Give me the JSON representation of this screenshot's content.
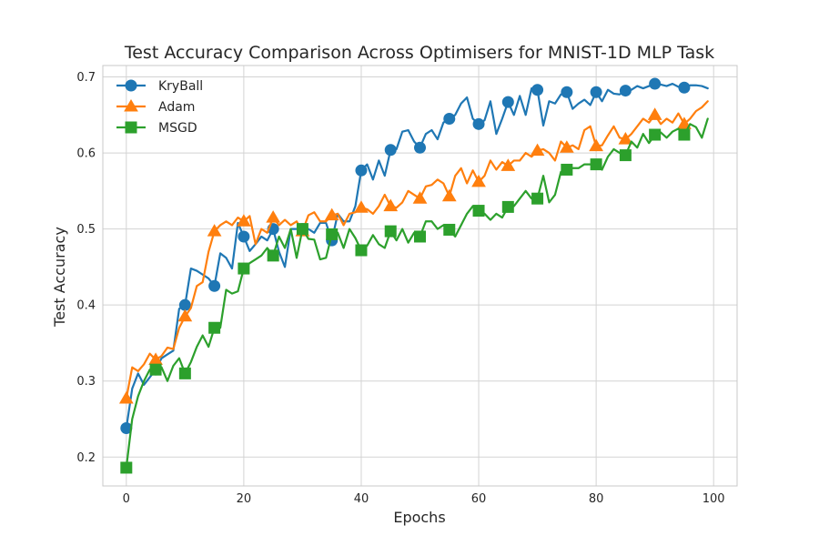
{
  "chart_data": {
    "type": "line",
    "title": "Test Accuracy Comparison Across Optimisers for MNIST-1D MLP Task",
    "xlabel": "Epochs",
    "ylabel": "Test Accuracy",
    "xlim": [
      -4,
      104
    ],
    "ylim": [
      0.162,
      0.715
    ],
    "xticks": [
      0,
      20,
      40,
      60,
      80,
      100
    ],
    "yticks": [
      0.2,
      0.3,
      0.4,
      0.5,
      0.6,
      0.7
    ],
    "grid": true,
    "legend_position": "top-left",
    "marker_every": 5,
    "series": [
      {
        "name": "KryBall",
        "color": "#1f77b4",
        "marker": "circle",
        "values": [
          0.238,
          0.29,
          0.31,
          0.295,
          0.305,
          0.315,
          0.33,
          0.335,
          0.34,
          0.395,
          0.4,
          0.448,
          0.445,
          0.44,
          0.435,
          0.425,
          0.468,
          0.462,
          0.448,
          0.508,
          0.49,
          0.471,
          0.48,
          0.49,
          0.485,
          0.5,
          0.47,
          0.45,
          0.5,
          0.5,
          0.5,
          0.5,
          0.495,
          0.508,
          0.508,
          0.485,
          0.52,
          0.51,
          0.51,
          0.53,
          0.577,
          0.585,
          0.565,
          0.59,
          0.57,
          0.604,
          0.605,
          0.628,
          0.63,
          0.615,
          0.607,
          0.625,
          0.63,
          0.618,
          0.64,
          0.645,
          0.65,
          0.665,
          0.673,
          0.645,
          0.638,
          0.643,
          0.668,
          0.625,
          0.645,
          0.667,
          0.65,
          0.675,
          0.65,
          0.685,
          0.683,
          0.636,
          0.668,
          0.665,
          0.677,
          0.68,
          0.658,
          0.665,
          0.67,
          0.663,
          0.68,
          0.668,
          0.683,
          0.678,
          0.677,
          0.682,
          0.683,
          0.688,
          0.685,
          0.688,
          0.691,
          0.69,
          0.688,
          0.691,
          0.687,
          0.686,
          0.689,
          0.689,
          0.688,
          0.685
        ]
      },
      {
        "name": "Adam",
        "color": "#ff7f0e",
        "marker": "triangle",
        "values": [
          0.277,
          0.318,
          0.313,
          0.322,
          0.336,
          0.328,
          0.333,
          0.344,
          0.342,
          0.37,
          0.385,
          0.396,
          0.425,
          0.43,
          0.47,
          0.497,
          0.505,
          0.51,
          0.505,
          0.515,
          0.51,
          0.517,
          0.48,
          0.5,
          0.495,
          0.515,
          0.505,
          0.512,
          0.505,
          0.51,
          0.497,
          0.518,
          0.522,
          0.51,
          0.51,
          0.518,
          0.52,
          0.505,
          0.52,
          0.522,
          0.528,
          0.526,
          0.52,
          0.53,
          0.545,
          0.53,
          0.528,
          0.535,
          0.55,
          0.545,
          0.54,
          0.556,
          0.558,
          0.565,
          0.56,
          0.543,
          0.57,
          0.58,
          0.56,
          0.577,
          0.562,
          0.57,
          0.59,
          0.578,
          0.588,
          0.583,
          0.59,
          0.59,
          0.6,
          0.595,
          0.603,
          0.605,
          0.6,
          0.59,
          0.615,
          0.607,
          0.61,
          0.605,
          0.63,
          0.635,
          0.609,
          0.61,
          0.623,
          0.635,
          0.62,
          0.618,
          0.625,
          0.635,
          0.645,
          0.64,
          0.65,
          0.638,
          0.645,
          0.64,
          0.652,
          0.638,
          0.645,
          0.655,
          0.66,
          0.668
        ]
      },
      {
        "name": "MSGD",
        "color": "#2ca02c",
        "marker": "square",
        "values": [
          0.186,
          0.25,
          0.28,
          0.3,
          0.315,
          0.315,
          0.318,
          0.3,
          0.32,
          0.33,
          0.31,
          0.325,
          0.345,
          0.36,
          0.345,
          0.37,
          0.37,
          0.42,
          0.415,
          0.418,
          0.448,
          0.455,
          0.46,
          0.465,
          0.475,
          0.465,
          0.49,
          0.475,
          0.5,
          0.462,
          0.5,
          0.487,
          0.486,
          0.46,
          0.462,
          0.493,
          0.495,
          0.475,
          0.5,
          0.488,
          0.472,
          0.478,
          0.492,
          0.48,
          0.475,
          0.497,
          0.485,
          0.5,
          0.482,
          0.495,
          0.49,
          0.51,
          0.51,
          0.5,
          0.505,
          0.499,
          0.49,
          0.505,
          0.52,
          0.53,
          0.524,
          0.52,
          0.512,
          0.52,
          0.515,
          0.529,
          0.53,
          0.54,
          0.55,
          0.54,
          0.54,
          0.57,
          0.535,
          0.545,
          0.575,
          0.578,
          0.58,
          0.58,
          0.585,
          0.585,
          0.585,
          0.578,
          0.595,
          0.605,
          0.6,
          0.597,
          0.615,
          0.607,
          0.625,
          0.613,
          0.624,
          0.627,
          0.62,
          0.628,
          0.632,
          0.624,
          0.638,
          0.634,
          0.62,
          0.645
        ]
      }
    ]
  }
}
